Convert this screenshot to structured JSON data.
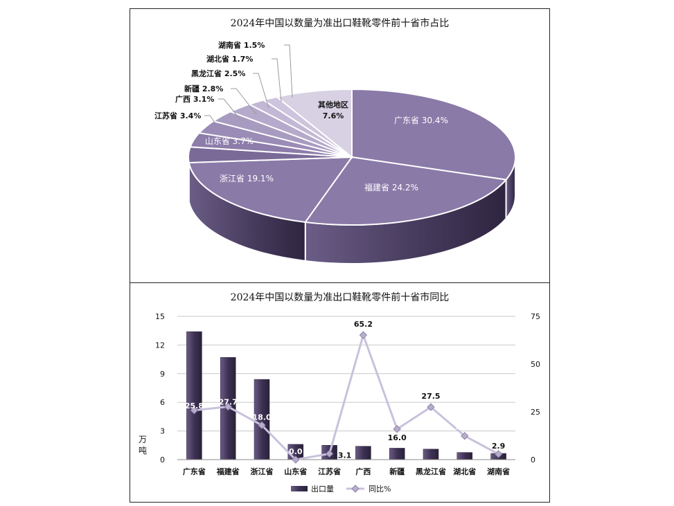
{
  "pie_chart": {
    "title": "2024年中国以数量为准出口鞋靴零件前十省市占比",
    "slices": [
      {
        "label": "广东省",
        "value": 30.4,
        "text": "广东省 30.4%"
      },
      {
        "label": "福建省",
        "value": 24.2,
        "text": "福建省 24.2%"
      },
      {
        "label": "浙江省",
        "value": 19.1,
        "text": "浙江省 19.1%"
      },
      {
        "label": "山东省",
        "value": 3.7,
        "text": "山东省 3.7%"
      },
      {
        "label": "江苏省",
        "value": 3.4,
        "text": "江苏省 3.4%"
      },
      {
        "label": "广西",
        "value": 3.1,
        "text": "广西 3.1%"
      },
      {
        "label": "新疆",
        "value": 2.8,
        "text": "新疆 2.8%"
      },
      {
        "label": "黑龙江省",
        "value": 2.5,
        "text": "黑龙江省 2.5%"
      },
      {
        "label": "湖北省",
        "value": 1.7,
        "text": "湖北省 1.7%"
      },
      {
        "label": "湖南省",
        "value": 1.5,
        "text": "湖南省 1.5%"
      },
      {
        "label": "其他地区",
        "value": 7.6,
        "text": "其他地区",
        "text2": "7.6%"
      }
    ]
  },
  "chart_data": [
    {
      "type": "pie",
      "title": "2024年中国以数量为准出口鞋靴零件前十省市占比",
      "categories": [
        "广东省",
        "福建省",
        "浙江省",
        "山东省",
        "江苏省",
        "广西",
        "新疆",
        "黑龙江省",
        "湖北省",
        "湖南省",
        "其他地区"
      ],
      "values": [
        30.4,
        24.2,
        19.1,
        3.7,
        3.4,
        3.1,
        2.8,
        2.5,
        1.7,
        1.5,
        7.6
      ],
      "unit": "%"
    },
    {
      "type": "bar",
      "title": "2024年中国以数量为准出口鞋靴零件前十省市同比",
      "categories": [
        "广东省",
        "福建省",
        "浙江省",
        "山东省",
        "江苏省",
        "广西",
        "新疆",
        "黑龙江省",
        "湖北省",
        "湖南省"
      ],
      "series": [
        {
          "name": "出口量",
          "type": "bar",
          "axis": "left",
          "values": [
            13.4,
            10.7,
            8.4,
            1.6,
            1.5,
            1.4,
            1.2,
            1.1,
            0.75,
            0.65
          ]
        },
        {
          "name": "同比%",
          "type": "line",
          "axis": "right",
          "values": [
            25.8,
            27.7,
            18.0,
            0.0,
            3.1,
            65.2,
            16.0,
            27.5,
            12.4,
            2.9
          ],
          "labels": [
            "25.8",
            "27.7",
            "18.0",
            "0.0",
            "3.1",
            "65.2",
            "16.0",
            "27.5",
            "12.4",
            "2.9"
          ]
        }
      ],
      "ylabel": "万吨",
      "ylim": [
        0,
        15
      ],
      "yticks": [
        "0",
        "3",
        "6",
        "9",
        "12",
        "15"
      ],
      "y2lim": [
        0,
        75
      ],
      "y2ticks": [
        "0",
        "25",
        "50",
        "75"
      ],
      "grid": true,
      "legend": "bottom",
      "colors": {
        "bar": "#4a3d63",
        "line": "#c9c1dc"
      }
    }
  ],
  "colors": {
    "pie_top": "#8a7aa8",
    "pie_dark": "#5a4d72",
    "pie_side": "#3f3453",
    "pie_other": "#d7d1e3"
  }
}
